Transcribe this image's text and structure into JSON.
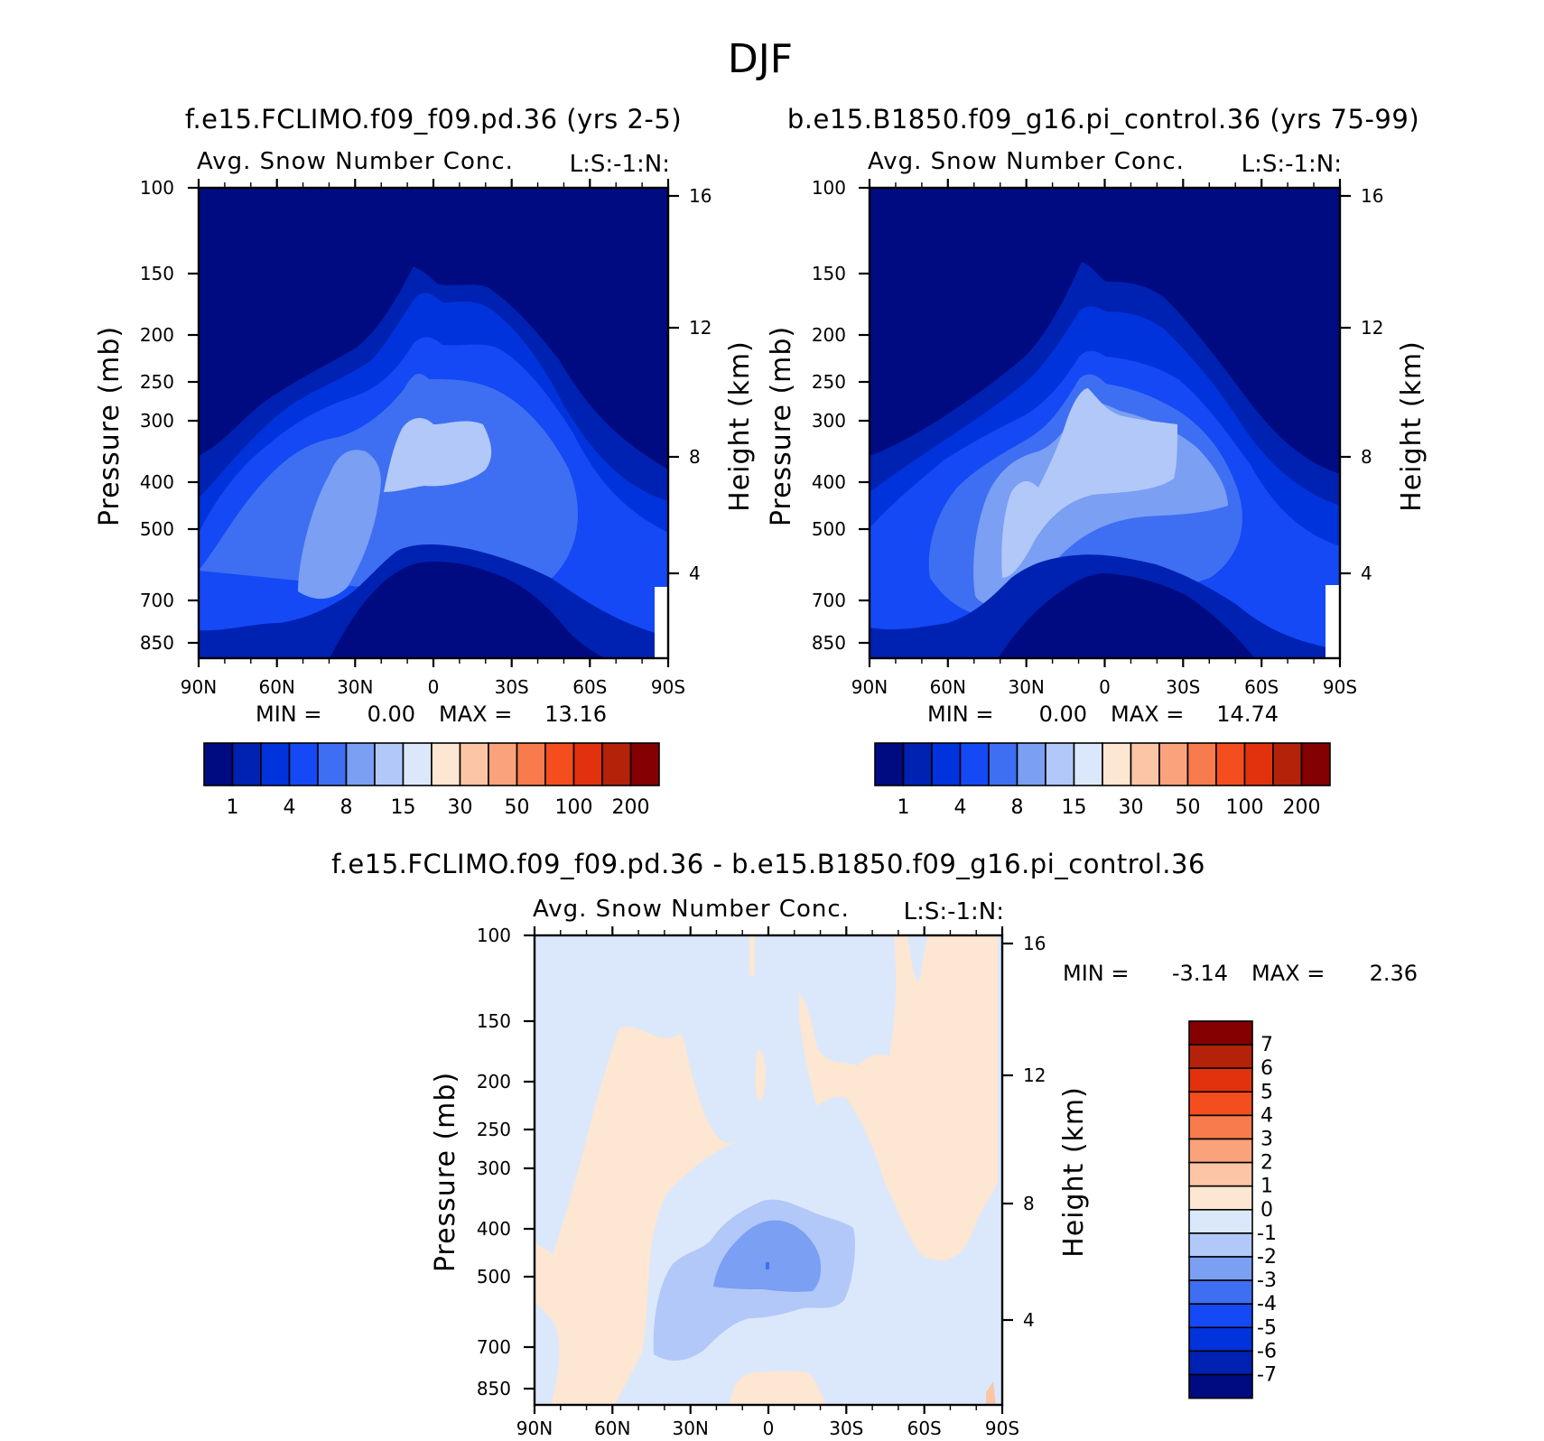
{
  "figure_title": "DJF",
  "chart_data": [
    {
      "type": "contour",
      "case_name": "f.e15.FCLIMO.f09_f09.pd.36 (yrs 2-5)",
      "variable": "Avg. Snow Number Conc.",
      "units": "L:S:-1:N:",
      "xlabel": "",
      "ylabel": "Pressure (mb)",
      "right_ylabel": "Height (km)",
      "x_ticks": [
        "90N",
        "60N",
        "30N",
        "0",
        "30S",
        "60S",
        "90S"
      ],
      "x_range": [
        90,
        -90
      ],
      "y_ticks": [
        100,
        150,
        200,
        250,
        300,
        400,
        500,
        700,
        850
      ],
      "y_range": [
        100,
        1000
      ],
      "y_scale": "log",
      "right_ticks": [
        16,
        12,
        8,
        4
      ],
      "min_label": "MIN =",
      "min_value": "0.00",
      "max_label": "MAX =",
      "max_value": "13.16",
      "levels": [
        1,
        2,
        4,
        6,
        8,
        10,
        15,
        20,
        30,
        40,
        50,
        70,
        100,
        150,
        200
      ],
      "colorbar_labels": [
        "1",
        "4",
        "8",
        "15",
        "30",
        "50",
        "100",
        "200"
      ],
      "colormap": [
        "#000b82",
        "#0022b2",
        "#0033dc",
        "#1449f5",
        "#3e6ff2",
        "#7a9ff3",
        "#b2c8f8",
        "#dbe8fb",
        "#fde6d2",
        "#fbc5a6",
        "#f9a27c",
        "#f77b4c",
        "#f44e1f",
        "#e1320d",
        "#b5220a",
        "#850000"
      ]
    },
    {
      "type": "contour",
      "case_name": "b.e15.B1850.f09_g16.pi_control.36 (yrs 75-99)",
      "variable": "Avg. Snow Number Conc.",
      "units": "L:S:-1:N:",
      "xlabel": "",
      "ylabel": "Pressure (mb)",
      "right_ylabel": "Height (km)",
      "x_ticks": [
        "90N",
        "60N",
        "30N",
        "0",
        "30S",
        "60S",
        "90S"
      ],
      "x_range": [
        90,
        -90
      ],
      "y_ticks": [
        100,
        150,
        200,
        250,
        300,
        400,
        500,
        700,
        850
      ],
      "y_range": [
        100,
        1000
      ],
      "y_scale": "log",
      "right_ticks": [
        16,
        12,
        8,
        4
      ],
      "min_label": "MIN =",
      "min_value": "0.00",
      "max_label": "MAX =",
      "max_value": "14.74",
      "levels": [
        1,
        2,
        4,
        6,
        8,
        10,
        15,
        20,
        30,
        40,
        50,
        70,
        100,
        150,
        200
      ],
      "colorbar_labels": [
        "1",
        "4",
        "8",
        "15",
        "30",
        "50",
        "100",
        "200"
      ],
      "colormap": [
        "#000b82",
        "#0022b2",
        "#0033dc",
        "#1449f5",
        "#3e6ff2",
        "#7a9ff3",
        "#b2c8f8",
        "#dbe8fb",
        "#fde6d2",
        "#fbc5a6",
        "#f9a27c",
        "#f77b4c",
        "#f44e1f",
        "#e1320d",
        "#b5220a",
        "#850000"
      ]
    },
    {
      "type": "contour",
      "case_name": "f.e15.FCLIMO.f09_f09.pd.36 - b.e15.B1850.f09_g16.pi_control.36",
      "variable": "Avg. Snow Number Conc.",
      "units": "L:S:-1:N:",
      "xlabel": "",
      "ylabel": "Pressure (mb)",
      "right_ylabel": "Height (km)",
      "x_ticks": [
        "90N",
        "60N",
        "30N",
        "0",
        "30S",
        "60S",
        "90S"
      ],
      "x_range": [
        90,
        -90
      ],
      "y_ticks": [
        100,
        150,
        200,
        250,
        300,
        400,
        500,
        700,
        850
      ],
      "y_range": [
        100,
        1000
      ],
      "y_scale": "log",
      "right_ticks": [
        16,
        12,
        8,
        4
      ],
      "min_label": "MIN =",
      "min_value": "-3.14",
      "max_label": "MAX =",
      "max_value": "2.36",
      "levels": [
        -7,
        -6,
        -5,
        -4,
        -3,
        -2,
        -1,
        0,
        1,
        2,
        3,
        4,
        5,
        6,
        7
      ],
      "colorbar_labels": [
        "7",
        "6",
        "5",
        "4",
        "3",
        "2",
        "1",
        "0",
        "-1",
        "-2",
        "-3",
        "-4",
        "-5",
        "-6",
        "-7"
      ],
      "colormap": [
        "#000b82",
        "#0022b2",
        "#0033dc",
        "#1449f5",
        "#3e6ff2",
        "#7a9ff3",
        "#b2c8f8",
        "#dbe8fb",
        "#fde6d2",
        "#fbc5a6",
        "#f9a27c",
        "#f77b4c",
        "#f44e1f",
        "#e1320d",
        "#b5220a",
        "#850000"
      ]
    }
  ]
}
